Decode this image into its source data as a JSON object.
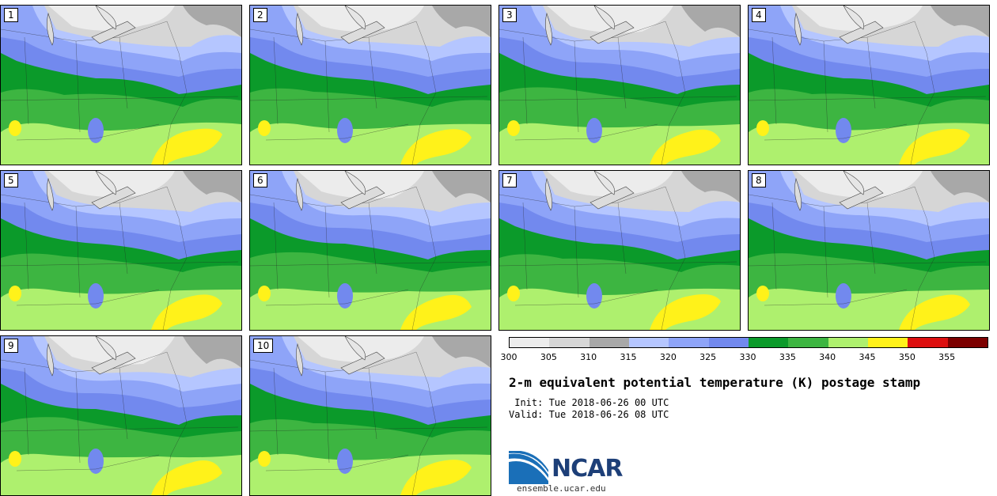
{
  "panels": [
    {
      "label": "1"
    },
    {
      "label": "2"
    },
    {
      "label": "3"
    },
    {
      "label": "4"
    },
    {
      "label": "5"
    },
    {
      "label": "6"
    },
    {
      "label": "7"
    },
    {
      "label": "8"
    },
    {
      "label": "9"
    },
    {
      "label": "10"
    }
  ],
  "colorbar": {
    "colors": [
      "#ececec",
      "#d6d6d6",
      "#a8a8a8",
      "#b5c6ff",
      "#8ea4f8",
      "#7289ee",
      "#0b9a2a",
      "#3db541",
      "#aef06e",
      "#fff21a",
      "#dd0f0f",
      "#7c0000"
    ],
    "ticks": [
      "300",
      "305",
      "310",
      "315",
      "320",
      "325",
      "330",
      "335",
      "340",
      "345",
      "350",
      "355"
    ]
  },
  "title": "2-m equivalent potential temperature (K) postage stamp",
  "init": " Init: Tue 2018-06-26 00 UTC",
  "valid": "Valid: Tue 2018-06-26 08 UTC",
  "logo": {
    "text": "NCAR",
    "url": "ensemble.ucar.edu"
  }
}
